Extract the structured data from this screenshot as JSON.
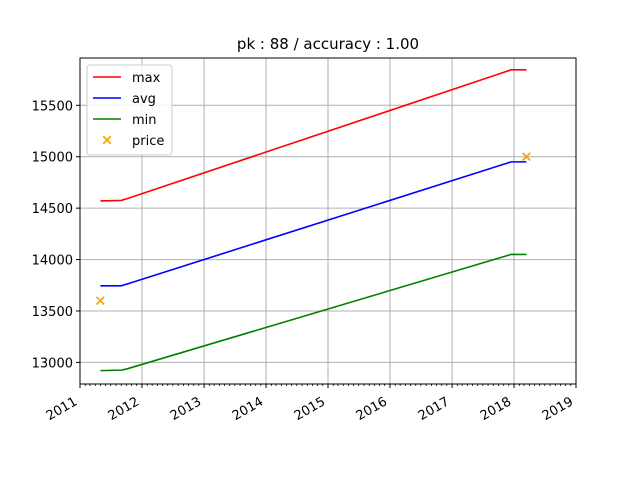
{
  "chart_data": {
    "type": "line",
    "title": "pk : 88 / accuracy : 1.00",
    "xlabel": "",
    "ylabel": "",
    "x_axis": "date",
    "xlim": [
      "2011-01-01",
      "2019-01-01"
    ],
    "ylim": [
      12790,
      15960
    ],
    "xticks": [
      "2011",
      "2012",
      "2013",
      "2014",
      "2015",
      "2016",
      "2017",
      "2018",
      "2019"
    ],
    "yticks": [
      13000,
      13500,
      14000,
      14500,
      15000,
      15500
    ],
    "grid": true,
    "legend_position": "top-left",
    "series": [
      {
        "name": "max",
        "type": "line",
        "color": "#ff0000",
        "points": [
          {
            "x": "2011-05-01",
            "y": 14570
          },
          {
            "x": "2011-09-01",
            "y": 14575
          },
          {
            "x": "2011-10-01",
            "y": 14590
          },
          {
            "x": "2017-12-15",
            "y": 15845
          },
          {
            "x": "2018-03-15",
            "y": 15845
          }
        ]
      },
      {
        "name": "avg",
        "type": "line",
        "color": "#0000ff",
        "points": [
          {
            "x": "2011-05-01",
            "y": 13745
          },
          {
            "x": "2011-09-01",
            "y": 13745
          },
          {
            "x": "2011-10-01",
            "y": 13760
          },
          {
            "x": "2017-12-15",
            "y": 14950
          },
          {
            "x": "2018-03-15",
            "y": 14950
          }
        ]
      },
      {
        "name": "min",
        "type": "line",
        "color": "#008000",
        "points": [
          {
            "x": "2011-05-01",
            "y": 12920
          },
          {
            "x": "2011-09-01",
            "y": 12925
          },
          {
            "x": "2011-10-01",
            "y": 12935
          },
          {
            "x": "2017-12-15",
            "y": 14050
          },
          {
            "x": "2018-03-15",
            "y": 14050
          }
        ]
      },
      {
        "name": "price",
        "type": "scatter",
        "marker": "x",
        "color": "#ffa500",
        "points": [
          {
            "x": "2011-05-01",
            "y": 13600
          },
          {
            "x": "2018-03-15",
            "y": 15000
          }
        ]
      }
    ]
  }
}
